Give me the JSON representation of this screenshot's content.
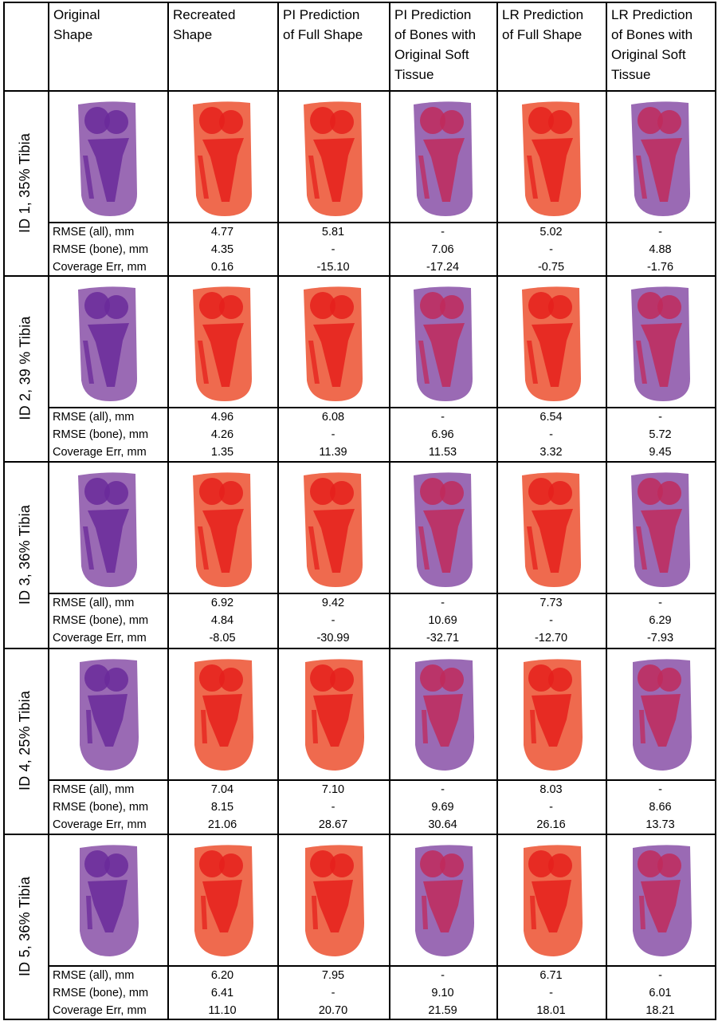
{
  "headers": [
    "Original\nShape",
    "Recreated\nShape",
    "PI Prediction\nof Full Shape",
    "PI Prediction\nof Bones with\nOriginal Soft\nTissue",
    "LR Prediction\nof Full Shape",
    "LR Prediction\nof Bones with\nOriginal Soft\nTissue"
  ],
  "metric_labels": [
    "RMSE (all), mm",
    "RMSE (bone), mm",
    "Coverage Err, mm"
  ],
  "rows": [
    {
      "label": "ID 1, 35% Tibia",
      "metrics": [
        [
          "4.77",
          "5.81",
          "-",
          "5.02",
          "-"
        ],
        [
          "4.35",
          "-",
          "7.06",
          "-",
          "4.88"
        ],
        [
          "0.16",
          "-15.10",
          "-17.24",
          "-0.75",
          "-1.76"
        ]
      ]
    },
    {
      "label": "ID 2, 39 % Tibia",
      "metrics": [
        [
          "4.96",
          "6.08",
          "-",
          "6.54",
          "-"
        ],
        [
          "4.26",
          "-",
          "6.96",
          "-",
          "5.72"
        ],
        [
          "1.35",
          "11.39",
          "11.53",
          "3.32",
          "9.45"
        ]
      ]
    },
    {
      "label": "ID 3, 36% Tibia",
      "metrics": [
        [
          "6.92",
          "9.42",
          "-",
          "7.73",
          "-"
        ],
        [
          "4.84",
          "-",
          "10.69",
          "-",
          "6.29"
        ],
        [
          "-8.05",
          "-30.99",
          "-32.71",
          "-12.70",
          "-7.93"
        ]
      ]
    },
    {
      "label": "ID 4, 25% Tibia",
      "metrics": [
        [
          "7.04",
          "7.10",
          "-",
          "8.03",
          "-"
        ],
        [
          "8.15",
          "-",
          "9.69",
          "-",
          "8.66"
        ],
        [
          "21.06",
          "28.67",
          "30.64",
          "26.16",
          "13.73"
        ]
      ]
    },
    {
      "label": "ID 5, 36% Tibia",
      "metrics": [
        [
          "6.20",
          "7.95",
          "-",
          "6.71",
          "-"
        ],
        [
          "6.41",
          "-",
          "9.10",
          "-",
          "6.01"
        ],
        [
          "11.10",
          "20.70",
          "21.59",
          "18.01",
          "18.21"
        ]
      ]
    }
  ],
  "shape_styles": [
    "purple",
    "red",
    "red",
    "mixed",
    "red",
    "mixed"
  ],
  "colors": {
    "purple_tissue": "#9a6ab4",
    "purple_bone": "#6a2a9a",
    "red_tissue": "#ef6a4e",
    "red_bone": "#e5201c",
    "mixed_bone": "#c02a5c",
    "grid": "#000000"
  }
}
